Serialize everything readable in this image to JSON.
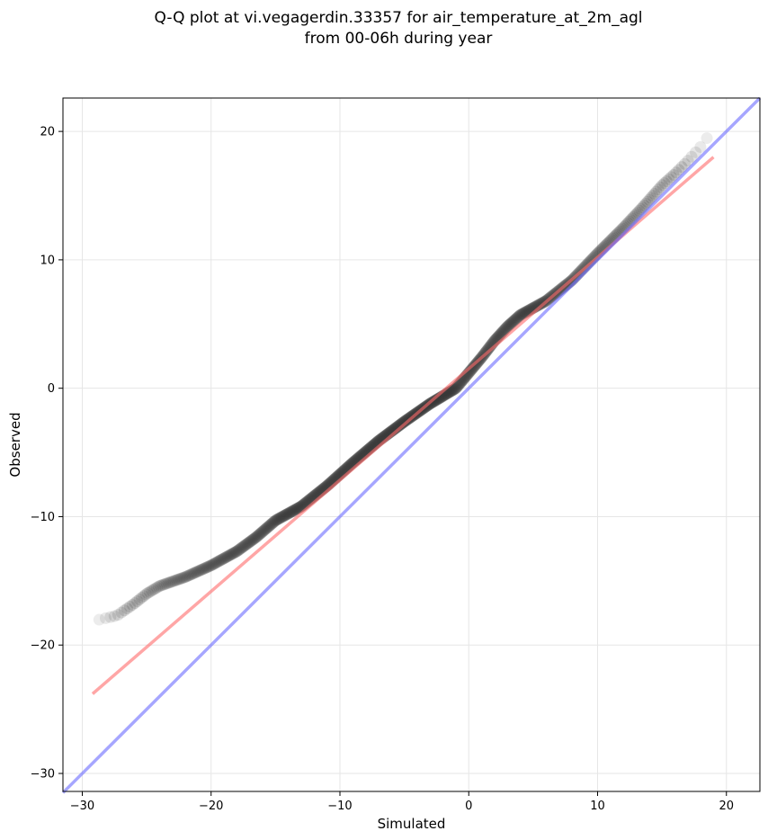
{
  "chart_data": {
    "type": "scatter",
    "title": [
      "Q-Q plot at vi.vegagerdin.33357 for air_temperature_at_2m_agl",
      "from 00-06h during year"
    ],
    "xlabel": "Simulated",
    "ylabel": "Observed",
    "xlim": [
      -31.5,
      22.6
    ],
    "ylim": [
      -31.4,
      22.6
    ],
    "xticks": [
      -30,
      -20,
      -10,
      0,
      10,
      20
    ],
    "yticks": [
      -30,
      -20,
      -10,
      0,
      10,
      20
    ],
    "grid": true,
    "quantiles_anchor": {
      "x": [
        -29.2,
        -29.0,
        -27.3,
        -26.0,
        -25.0,
        -24.0,
        -22.0,
        -20.0,
        -18.0,
        -16.5,
        -15.0,
        -13.0,
        -11.0,
        -9.0,
        -7.0,
        -5.0,
        -3.0,
        -1.0,
        0.0,
        1.0,
        2.0,
        3.0,
        4.0,
        6.0,
        8.0,
        10.0,
        12.0,
        13.5,
        15.0,
        16.0,
        17.0,
        18.0,
        19.0
      ],
      "y": [
        -18.9,
        -18.1,
        -17.7,
        -16.8,
        -16.0,
        -15.4,
        -14.7,
        -13.8,
        -12.7,
        -11.6,
        -10.3,
        -9.2,
        -7.6,
        -5.8,
        -4.1,
        -2.6,
        -1.2,
        0.0,
        1.2,
        2.4,
        3.7,
        4.8,
        5.7,
        6.8,
        8.4,
        10.5,
        12.5,
        14.1,
        15.8,
        16.7,
        17.7,
        18.8,
        20.2
      ]
    },
    "n_points": 700,
    "regression_line": {
      "x": [
        -29.2,
        19.0
      ],
      "y": [
        -23.8,
        18.0
      ],
      "color": "#ff6b6b"
    },
    "identity_line": {
      "x": [
        -31.5,
        22.6
      ],
      "y": [
        -31.5,
        22.6
      ],
      "color": "#6b6bff"
    },
    "point_color": "#333333"
  }
}
